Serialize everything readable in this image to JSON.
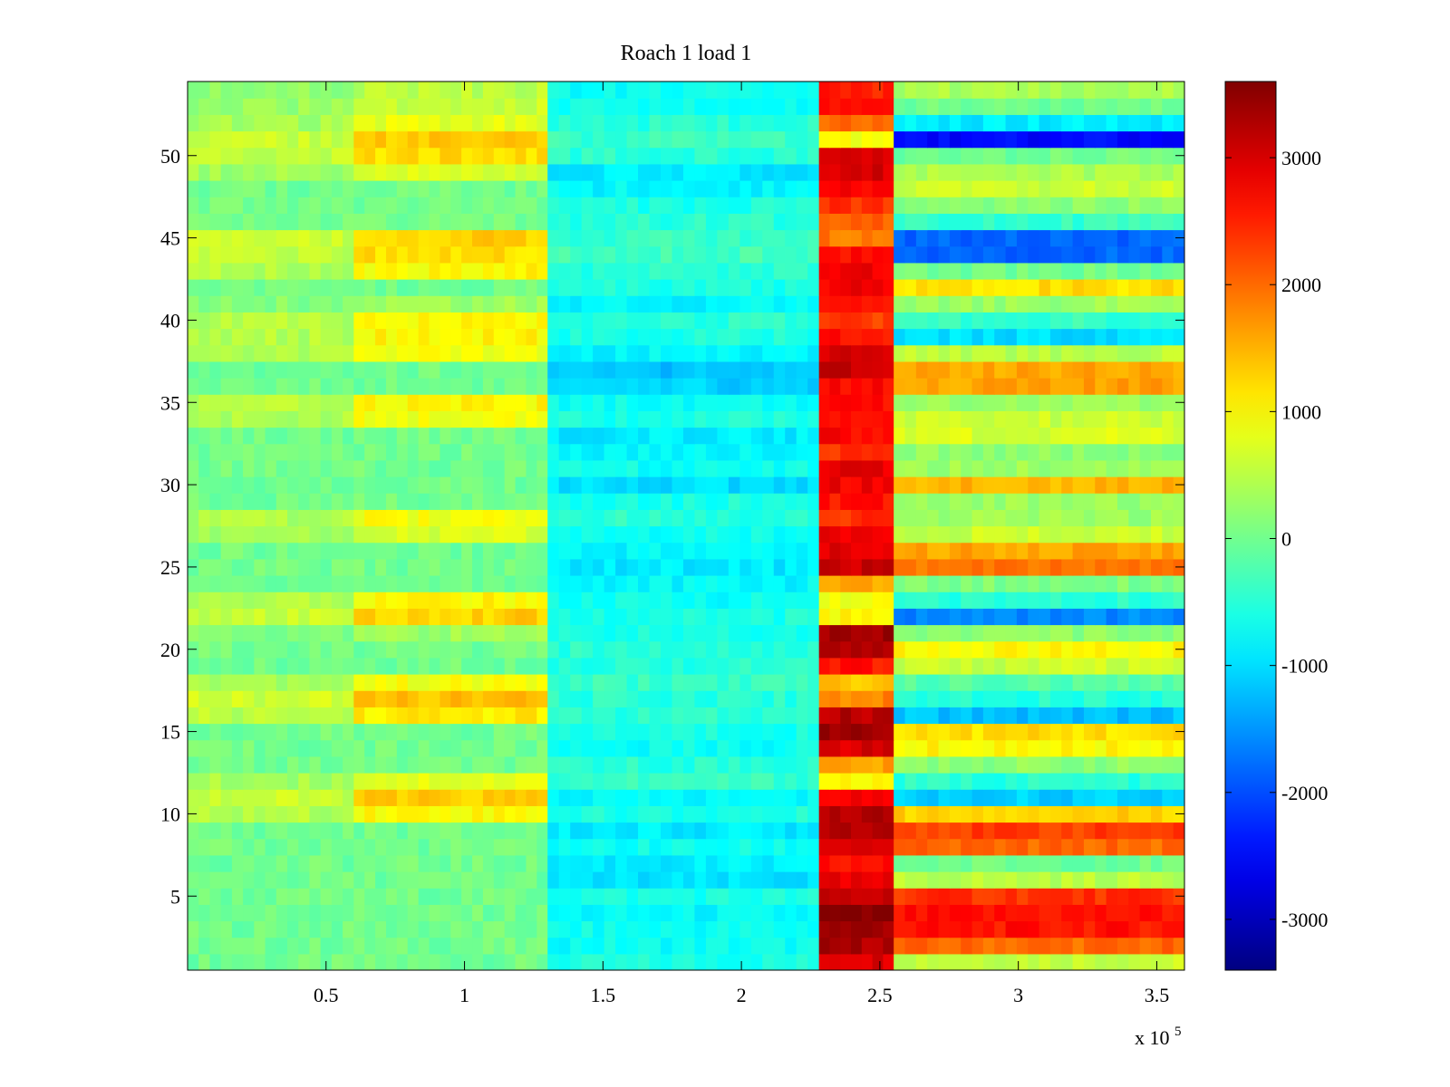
{
  "chart_data": {
    "type": "heatmap",
    "title": "Roach 1 load 1",
    "xlabel": "",
    "ylabel": "",
    "x_multiplier_label": "x 10",
    "x_multiplier_exponent": "5",
    "x_tick_values": [
      0.5,
      1,
      1.5,
      2,
      2.5,
      3,
      3.5
    ],
    "x_tick_labels": [
      "0.5",
      "1",
      "1.5",
      "2",
      "2.5",
      "3",
      "3.5"
    ],
    "y_tick_values": [
      5,
      10,
      15,
      20,
      25,
      30,
      35,
      40,
      45,
      50
    ],
    "y_tick_labels": [
      "5",
      "10",
      "15",
      "20",
      "25",
      "30",
      "35",
      "40",
      "45",
      "50"
    ],
    "xlim": [
      0,
      3.6
    ],
    "ylim": [
      0.5,
      54.5
    ],
    "rows": 54,
    "colormap": "jet",
    "clim": [
      -3400,
      3600
    ],
    "colorbar_ticks": [
      -3000,
      -2000,
      -1000,
      0,
      1000,
      2000,
      3000
    ],
    "colorbar_labels": [
      "-3000",
      "-2000",
      "-1000",
      "0",
      "1000",
      "2000",
      "3000"
    ],
    "grid": false,
    "x_segments": [
      {
        "x_start": 0,
        "x_end": 0.6,
        "level": "phase_a_flank"
      },
      {
        "x_start": 0.6,
        "x_end": 1.3,
        "level": "phase_a_peak"
      },
      {
        "x_start": 1.3,
        "x_end": 2.28,
        "level": "phase_b"
      },
      {
        "x_start": 2.28,
        "x_end": 2.55,
        "level": "phase_c_peak"
      },
      {
        "x_start": 2.55,
        "x_end": 3.6,
        "level": "phase_d"
      }
    ],
    "row_values": {
      "phase_a_peak": [
        0,
        0,
        0,
        0,
        0,
        0,
        0,
        0,
        0,
        1000,
        1300,
        800,
        0,
        0,
        0,
        1100,
        1400,
        900,
        0,
        0,
        300,
        1300,
        1000,
        0,
        0,
        0,
        700,
        900,
        0,
        0,
        0,
        0,
        0,
        900,
        1000,
        0,
        0,
        900,
        1000,
        1000,
        300,
        0,
        1000,
        1200,
        1300,
        0,
        0,
        0,
        700,
        1200,
        1300,
        800,
        600,
        500
      ],
      "phase_b": [
        -600,
        -700,
        -700,
        -800,
        -600,
        -1000,
        -900,
        -700,
        -900,
        -600,
        -800,
        -400,
        -500,
        -700,
        -600,
        -500,
        -500,
        -400,
        -500,
        -500,
        -600,
        -600,
        -700,
        -800,
        -900,
        -800,
        -700,
        -500,
        -600,
        -1000,
        -700,
        -800,
        -900,
        -600,
        -700,
        -1100,
        -1200,
        -800,
        -600,
        -500,
        -800,
        -600,
        -500,
        -300,
        -400,
        -500,
        -600,
        -800,
        -900,
        -500,
        -400,
        -500,
        -700,
        -700
      ],
      "phase_c_peak": [
        3000,
        3300,
        3400,
        3500,
        3100,
        2800,
        2600,
        3000,
        3300,
        3300,
        2800,
        1000,
        1600,
        3000,
        3400,
        3200,
        1800,
        1400,
        2600,
        3200,
        3400,
        1000,
        900,
        1600,
        3100,
        2900,
        2900,
        2400,
        2600,
        2800,
        2900,
        2400,
        2700,
        2700,
        2600,
        2700,
        3100,
        3000,
        2600,
        2300,
        2600,
        2800,
        2800,
        2600,
        1900,
        2100,
        2400,
        2800,
        3000,
        2900,
        900,
        2000,
        2600,
        2500
      ],
      "phase_d": [
        600,
        2000,
        2600,
        2600,
        2400,
        500,
        0,
        2000,
        2300,
        1300,
        -1100,
        -500,
        200,
        1000,
        1200,
        -1200,
        -500,
        -200,
        600,
        1000,
        200,
        -1600,
        -500,
        100,
        1900,
        1600,
        600,
        300,
        300,
        1500,
        300,
        200,
        700,
        600,
        300,
        1600,
        1600,
        500,
        -1000,
        -400,
        300,
        1200,
        0,
        -1800,
        -1800,
        -400,
        200,
        600,
        400,
        0,
        -2500,
        -900,
        0,
        400
      ]
    }
  }
}
